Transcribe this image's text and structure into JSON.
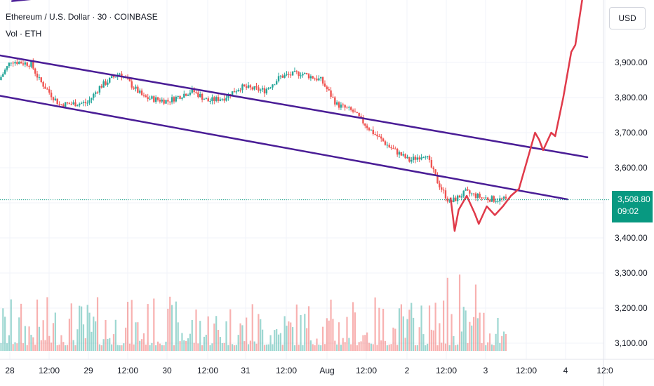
{
  "header": {
    "title": "Ethereum / U.S. Dollar · 30 · COINBASE",
    "volume_label": "Vol · ETH"
  },
  "currency_button": "USD",
  "last_price": {
    "price": "3,508.80",
    "countdown": "09:02"
  },
  "colors": {
    "up": "#26a69a",
    "down": "#ef5350",
    "channel": "#4a1d96",
    "projection": "#e03a4a",
    "last_price_tag": "#089981",
    "grid": "#f0f3fa",
    "axis_text": "#131722"
  },
  "chart_data": {
    "type": "candlestick",
    "symbol": "Ethereum / U.S. Dollar · 30 · COINBASE",
    "y_axis": {
      "ticks": [
        3100,
        3200,
        3300,
        3400,
        3600,
        3700,
        3800,
        3900
      ],
      "tick_labels": [
        "3,100.00",
        "3,200.00",
        "3,300.00",
        "3,400.00",
        "3,600.00",
        "3,700.00",
        "3,800.00",
        "3,900.00"
      ],
      "range": [
        3010,
        4020
      ],
      "unit": "USD"
    },
    "x_axis": {
      "ticks": [
        "28",
        "12:00",
        "29",
        "12:00",
        "30",
        "12:00",
        "31",
        "12:00",
        "Aug",
        "12:00",
        "2",
        "12:00",
        "3",
        "12:00",
        "4",
        "12:0"
      ],
      "bar_interval_minutes": 30,
      "first_tick": "28",
      "last_tick": "12:0"
    },
    "price_path": [
      {
        "t": 0,
        "p": 3850
      },
      {
        "t": 6,
        "p": 3905
      },
      {
        "t": 16,
        "p": 3895
      },
      {
        "t": 20,
        "p": 3850
      },
      {
        "t": 30,
        "p": 3780
      },
      {
        "t": 44,
        "p": 3785
      },
      {
        "t": 50,
        "p": 3830
      },
      {
        "t": 60,
        "p": 3870
      },
      {
        "t": 72,
        "p": 3800
      },
      {
        "t": 84,
        "p": 3790
      },
      {
        "t": 96,
        "p": 3820
      },
      {
        "t": 104,
        "p": 3790
      },
      {
        "t": 112,
        "p": 3800
      },
      {
        "t": 120,
        "p": 3830
      },
      {
        "t": 132,
        "p": 3820
      },
      {
        "t": 140,
        "p": 3860
      },
      {
        "t": 150,
        "p": 3870
      },
      {
        "t": 160,
        "p": 3850
      },
      {
        "t": 168,
        "p": 3780
      },
      {
        "t": 176,
        "p": 3760
      },
      {
        "t": 186,
        "p": 3700
      },
      {
        "t": 194,
        "p": 3660
      },
      {
        "t": 204,
        "p": 3620
      },
      {
        "t": 212,
        "p": 3640
      },
      {
        "t": 218,
        "p": 3560
      },
      {
        "t": 224,
        "p": 3500
      },
      {
        "t": 232,
        "p": 3530
      },
      {
        "t": 240,
        "p": 3515
      },
      {
        "t": 246,
        "p": 3510
      },
      {
        "t": 252,
        "p": 3508.8
      }
    ],
    "last_price": 3508.8,
    "volume": {
      "shown": true,
      "label": "Vol · ETH"
    },
    "annotations": {
      "channel_upper": {
        "from": {
          "t": 0,
          "p": 3920
        },
        "to": {
          "t": 292,
          "p": 3630
        }
      },
      "channel_lower": {
        "from": {
          "t": 0,
          "p": 3805
        },
        "to": {
          "t": 282,
          "p": 3510
        }
      },
      "extra_line": {
        "from": {
          "t": 6,
          "p": 4075
        },
        "to": {
          "t": 100,
          "p": 4130
        }
      },
      "projection": [
        {
          "t": 224,
          "p": 3515
        },
        {
          "t": 226,
          "p": 3420
        },
        {
          "t": 228,
          "p": 3480
        },
        {
          "t": 232,
          "p": 3520
        },
        {
          "t": 236,
          "p": 3470
        },
        {
          "t": 238,
          "p": 3440
        },
        {
          "t": 242,
          "p": 3490
        },
        {
          "t": 246,
          "p": 3465
        },
        {
          "t": 250,
          "p": 3490
        },
        {
          "t": 254,
          "p": 3520
        },
        {
          "t": 258,
          "p": 3540
        },
        {
          "t": 262,
          "p": 3620
        },
        {
          "t": 266,
          "p": 3700
        },
        {
          "t": 268,
          "p": 3680
        },
        {
          "t": 270,
          "p": 3650
        },
        {
          "t": 274,
          "p": 3700
        },
        {
          "t": 276,
          "p": 3690
        },
        {
          "t": 280,
          "p": 3800
        },
        {
          "t": 284,
          "p": 3930
        },
        {
          "t": 286,
          "p": 3950
        },
        {
          "t": 290,
          "p": 4100
        }
      ]
    },
    "grid": true,
    "legend": "none"
  }
}
